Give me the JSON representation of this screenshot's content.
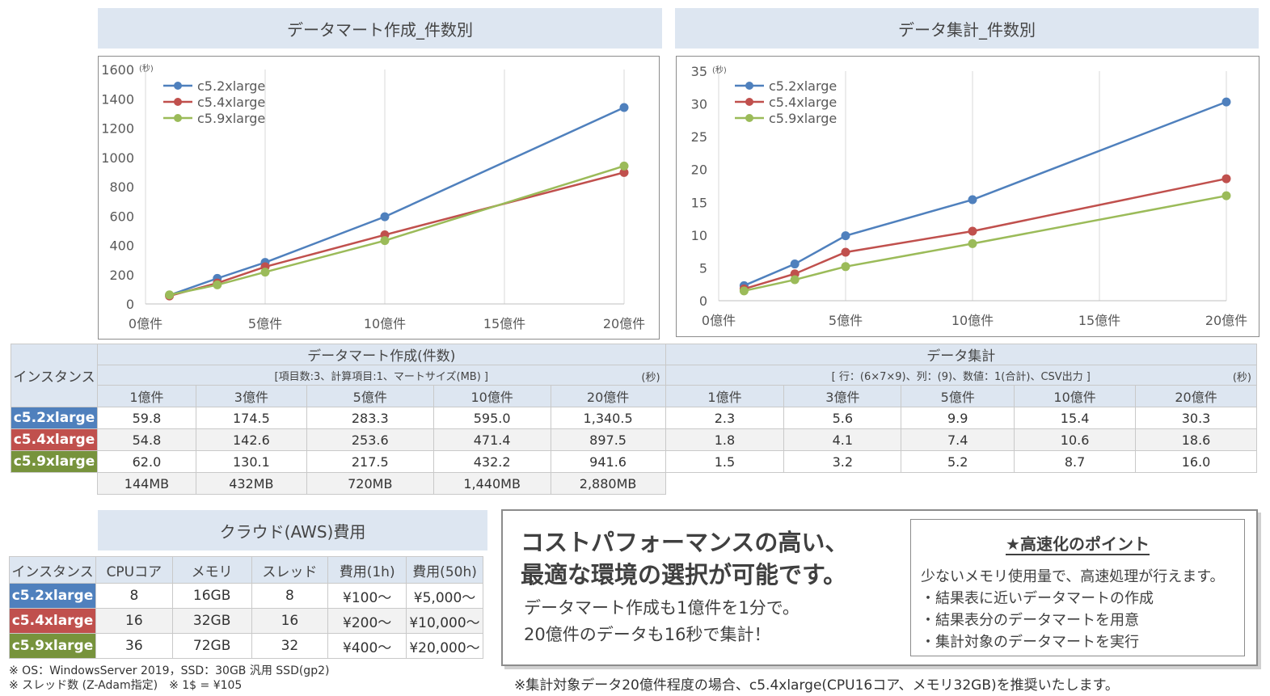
{
  "charts": {
    "left_banner": "データマート作成_件数別",
    "right_banner": "データ集計_件数別"
  },
  "chart_data": [
    {
      "type": "line",
      "title": "データマート作成_件数別",
      "unit": "(秒)",
      "x": [
        1,
        3,
        5,
        10,
        20
      ],
      "xticks": [
        "0億件",
        "5億件",
        "10億件",
        "15億件",
        "20億件"
      ],
      "xlim": [
        0,
        20
      ],
      "ylim": [
        0,
        1600
      ],
      "yticks": [
        "0",
        "200",
        "400",
        "600",
        "800",
        "1000",
        "1200",
        "1400",
        "1600"
      ],
      "legend": "top-left",
      "grid": true,
      "series": [
        {
          "name": "c5.2xlarge",
          "color": "#4f80bd",
          "values": [
            59.8,
            174.5,
            283.3,
            595.0,
            1340.5
          ]
        },
        {
          "name": "c5.4xlarge",
          "color": "#c0504d",
          "values": [
            54.8,
            142.6,
            253.6,
            471.4,
            897.5
          ]
        },
        {
          "name": "c5.9xlarge",
          "color": "#9bbb59",
          "values": [
            62.0,
            130.1,
            217.5,
            432.2,
            941.6
          ]
        }
      ]
    },
    {
      "type": "line",
      "title": "データ集計_件数別",
      "unit": "(秒)",
      "x": [
        1,
        3,
        5,
        10,
        20
      ],
      "xticks": [
        "0億件",
        "5億件",
        "10億件",
        "15億件",
        "20億件"
      ],
      "xlim": [
        0,
        20
      ],
      "ylim": [
        0,
        35
      ],
      "yticks": [
        "0",
        "5",
        "10",
        "15",
        "20",
        "25",
        "30",
        "35"
      ],
      "legend": "top-left",
      "grid": true,
      "series": [
        {
          "name": "c5.2xlarge",
          "color": "#4f80bd",
          "values": [
            2.3,
            5.6,
            9.9,
            15.4,
            30.3
          ]
        },
        {
          "name": "c5.4xlarge",
          "color": "#c0504d",
          "values": [
            1.8,
            4.1,
            7.4,
            10.6,
            18.6
          ]
        },
        {
          "name": "c5.9xlarge",
          "color": "#9bbb59",
          "values": [
            1.5,
            3.2,
            5.2,
            8.7,
            16.0
          ]
        }
      ]
    }
  ],
  "results_table": {
    "instance_header": "インスタンス",
    "mart_title": "データマート作成(件数)",
    "mart_sub": "[項目数:3、計算項目:1、マートサイズ(MB) ]",
    "agg_title": "データ集計",
    "agg_sub": "[ 行：(6×7×9)、列：(9)、数値：1(合計)、CSV出力 ]",
    "unit": "(秒)",
    "cols": [
      "1億件",
      "3億件",
      "5億件",
      "10億件",
      "20億件"
    ],
    "rows": [
      {
        "name": "c5.2xlarge",
        "mart": [
          "59.8",
          "174.5",
          "283.3",
          "595.0",
          "1,340.5"
        ],
        "agg": [
          "2.3",
          "5.6",
          "9.9",
          "15.4",
          "30.3"
        ]
      },
      {
        "name": "c5.4xlarge",
        "mart": [
          "54.8",
          "142.6",
          "253.6",
          "471.4",
          "897.5"
        ],
        "agg": [
          "1.8",
          "4.1",
          "7.4",
          "10.6",
          "18.6"
        ]
      },
      {
        "name": "c5.9xlarge",
        "mart": [
          "62.0",
          "130.1",
          "217.5",
          "432.2",
          "941.6"
        ],
        "agg": [
          "1.5",
          "3.2",
          "5.2",
          "8.7",
          "16.0"
        ]
      }
    ],
    "sizes": [
      "144MB",
      "432MB",
      "720MB",
      "1,440MB",
      "2,880MB"
    ]
  },
  "cost": {
    "banner": "クラウド(AWS)費用",
    "headers": [
      "インスタンス",
      "CPUコア",
      "メモリ",
      "スレッド",
      "費用(1h)",
      "費用(50h)"
    ],
    "rows": [
      {
        "name": "c5.2xlarge",
        "cells": [
          "8",
          "16GB",
          "8",
          "¥100～",
          "¥5,000～"
        ]
      },
      {
        "name": "c5.4xlarge",
        "cells": [
          "16",
          "32GB",
          "16",
          "¥200～",
          "¥10,000～"
        ]
      },
      {
        "name": "c5.9xlarge",
        "cells": [
          "36",
          "72GB",
          "32",
          "¥400～",
          "¥20,000～"
        ]
      }
    ],
    "note1": "※ OS：WindowsServer 2019，SSD：30GB 汎用 SSD(gp2)",
    "note2": "※ スレッド数 (Z-Adam指定)　※ 1$ = ¥105"
  },
  "highlight": {
    "headline1": "コストパフォーマンスの高い、",
    "headline2": "最適な環境の選択が可能です。",
    "body1": "データマート作成も1億件を1分で。",
    "body2": "20億件のデータも16秒で集計！",
    "points_title": "★高速化のポイント",
    "points_intro": "少ないメモリ使用量で、高速処理が行えます。",
    "points": [
      "・結果表に近いデータマートの作成",
      "・結果表分のデータマートを用意",
      "・集計対象のデータマートを実行"
    ],
    "footnote": "※集計対象データ20億件程度の場合、c5.4xlarge(CPU16コア、メモリ32GB)を推奨いたします。"
  }
}
